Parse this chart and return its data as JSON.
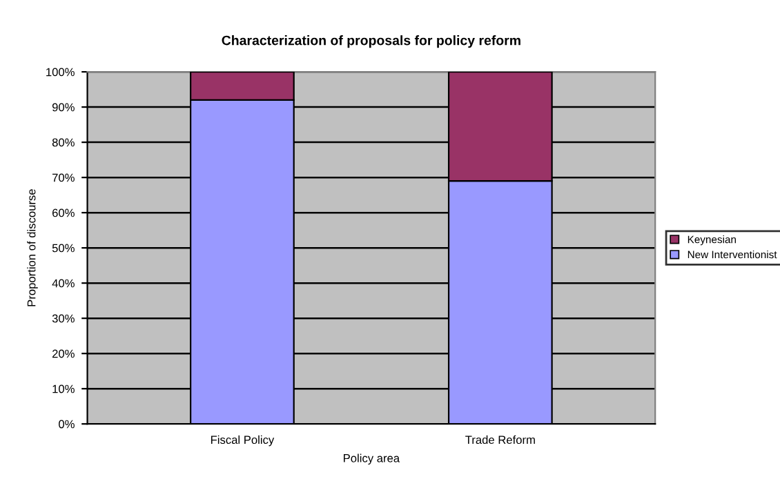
{
  "chart_data": {
    "type": "bar",
    "title": "Characterization of proposals for policy reform",
    "xlabel": "Policy area",
    "ylabel": "Proportion of discourse",
    "categories": [
      "Fiscal Policy",
      "Trade Reform"
    ],
    "series": [
      {
        "name": "New Interventionist",
        "color": "#9999ff",
        "values": [
          92,
          69
        ]
      },
      {
        "name": "Keynesian",
        "color": "#993366",
        "values": [
          8,
          31
        ]
      }
    ],
    "stacked": true,
    "ylim": [
      0,
      100
    ],
    "yticks": [
      {
        "value": 0,
        "label": "0%"
      },
      {
        "value": 10,
        "label": "10%"
      },
      {
        "value": 20,
        "label": "20%"
      },
      {
        "value": 30,
        "label": "30%"
      },
      {
        "value": 40,
        "label": "40%"
      },
      {
        "value": 50,
        "label": "50%"
      },
      {
        "value": 60,
        "label": "60%"
      },
      {
        "value": 70,
        "label": "70%"
      },
      {
        "value": 80,
        "label": "80%"
      },
      {
        "value": 90,
        "label": "90%"
      },
      {
        "value": 100,
        "label": "100%"
      }
    ],
    "grid": "y",
    "legend": "right"
  }
}
